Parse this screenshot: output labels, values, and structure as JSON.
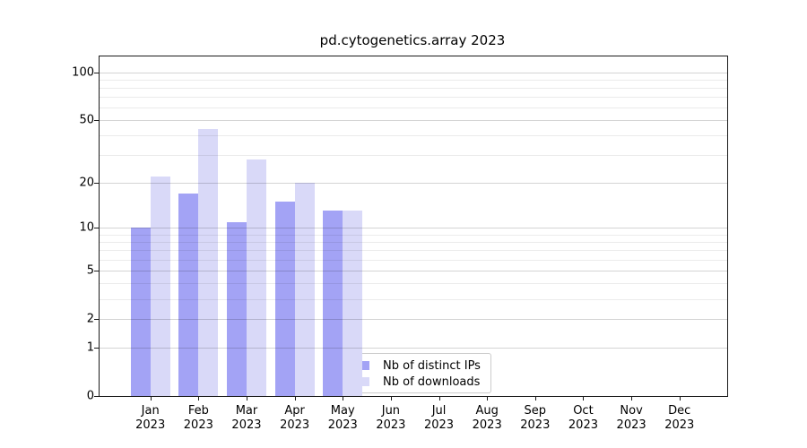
{
  "title": "pd.cytogenetics.array 2023",
  "colors": {
    "distinct_ips": "#a3a3f5",
    "downloads": "#d9d9f8",
    "spine": "#1a1a1a",
    "grid_major": "rgba(0,0,0,0.17)",
    "grid_minor": "rgba(0,0,0,0.08)",
    "legend_border": "#cccccc",
    "text": "#000000"
  },
  "y_axis": {
    "scale": "log10(1+x)",
    "tick_labels": [
      "0",
      "1",
      "2",
      "5",
      "10",
      "20",
      "50",
      "100"
    ],
    "tick_values": [
      0,
      1,
      2,
      5,
      10,
      20,
      50,
      100
    ],
    "minor_gridline_values": [
      3,
      4,
      6,
      7,
      8,
      9,
      30,
      40,
      60,
      70,
      80,
      90
    ]
  },
  "x_axis": {
    "year": "2023",
    "months": [
      "Jan",
      "Feb",
      "Mar",
      "Apr",
      "May",
      "Jun",
      "Jul",
      "Aug",
      "Sep",
      "Oct",
      "Nov",
      "Dec"
    ]
  },
  "legend": {
    "items": [
      {
        "label": "Nb of distinct IPs",
        "series_key": "distinct_ips"
      },
      {
        "label": "Nb of downloads",
        "series_key": "downloads"
      }
    ]
  },
  "chart_data": {
    "type": "bar",
    "title": "pd.cytogenetics.array 2023",
    "categories": [
      "Jan 2023",
      "Feb 2023",
      "Mar 2023",
      "Apr 2023",
      "May 2023",
      "Jun 2023",
      "Jul 2023",
      "Aug 2023",
      "Sep 2023",
      "Oct 2023",
      "Nov 2023",
      "Dec 2023"
    ],
    "series": [
      {
        "name": "Nb of distinct IPs",
        "key": "distinct_ips",
        "values": [
          10,
          17,
          11,
          15,
          13,
          0,
          0,
          0,
          0,
          0,
          0,
          0
        ]
      },
      {
        "name": "Nb of downloads",
        "key": "downloads",
        "values": [
          22,
          44,
          28,
          20,
          13,
          0,
          0,
          0,
          0,
          0,
          0,
          0
        ]
      }
    ],
    "yscale": "log10(1+x)",
    "y_ticks": [
      0,
      1,
      2,
      5,
      10,
      20,
      50,
      100
    ],
    "ylim": [
      0,
      134
    ],
    "grid": true,
    "legend_position": "inside-lower-center"
  }
}
